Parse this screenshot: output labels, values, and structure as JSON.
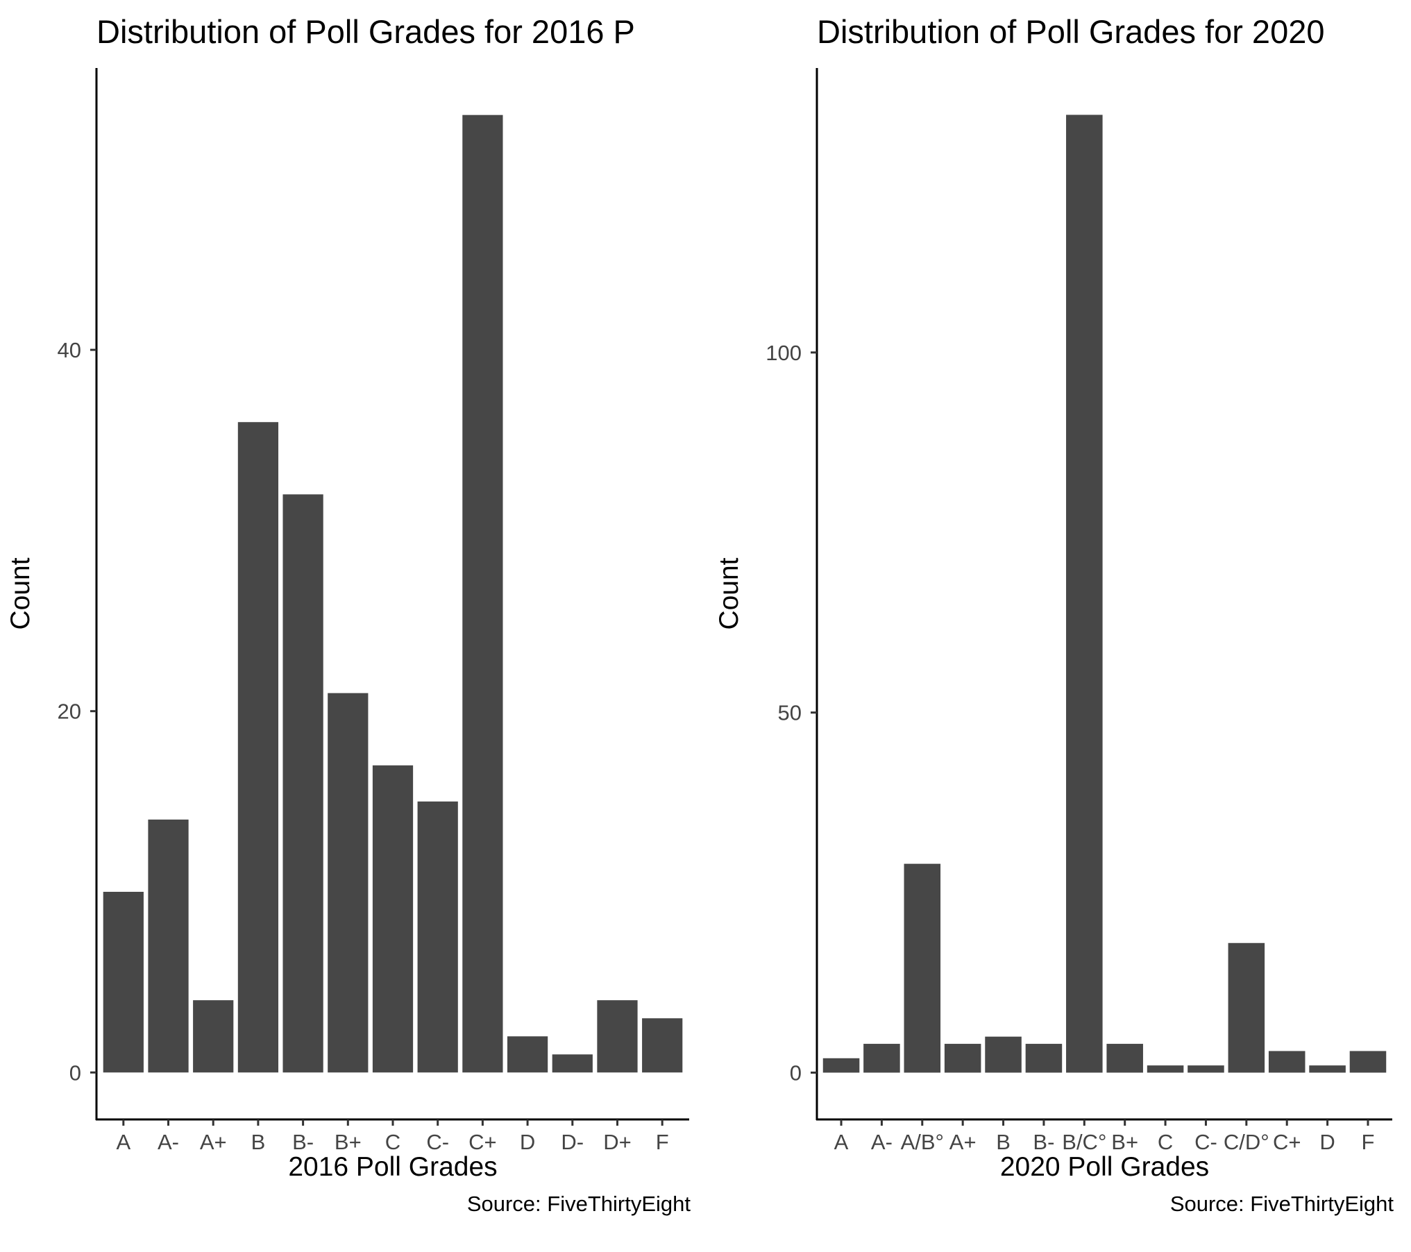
{
  "chart_data": [
    {
      "type": "bar",
      "title": "Distribution of Poll Grades for 2016 P",
      "xlabel": "2016 Poll Grades",
      "ylabel": "Count",
      "caption": "Source: FiveThirtyEight",
      "categories": [
        "A",
        "A-",
        "A+",
        "B",
        "B-",
        "B+",
        "C",
        "C-",
        "C+",
        "D",
        "D-",
        "D+",
        "F"
      ],
      "values": [
        10,
        14,
        4,
        36,
        32,
        21,
        17,
        15,
        53,
        2,
        1,
        4,
        3
      ],
      "yticks": [
        0,
        20,
        40
      ],
      "ylim": [
        -2.6,
        55.6
      ],
      "bar_color": "#474747",
      "grid": false
    },
    {
      "type": "bar",
      "title": "Distribution of Poll Grades for 2020",
      "xlabel": "2020 Poll Grades",
      "ylabel": "Count",
      "caption": "Source: FiveThirtyEight",
      "categories": [
        "A",
        "A-",
        "A/B°",
        "A+",
        "B",
        "B-",
        "B/C°",
        "B+",
        "C",
        "C-",
        "C/D°",
        "C+",
        "D",
        "F"
      ],
      "values": [
        2,
        4,
        29,
        4,
        5,
        4,
        133,
        4,
        1,
        1,
        18,
        3,
        1,
        3
      ],
      "yticks": [
        0,
        50,
        100
      ],
      "ylim": [
        -6.5,
        139.5
      ],
      "bar_color": "#474747",
      "grid": false
    }
  ]
}
